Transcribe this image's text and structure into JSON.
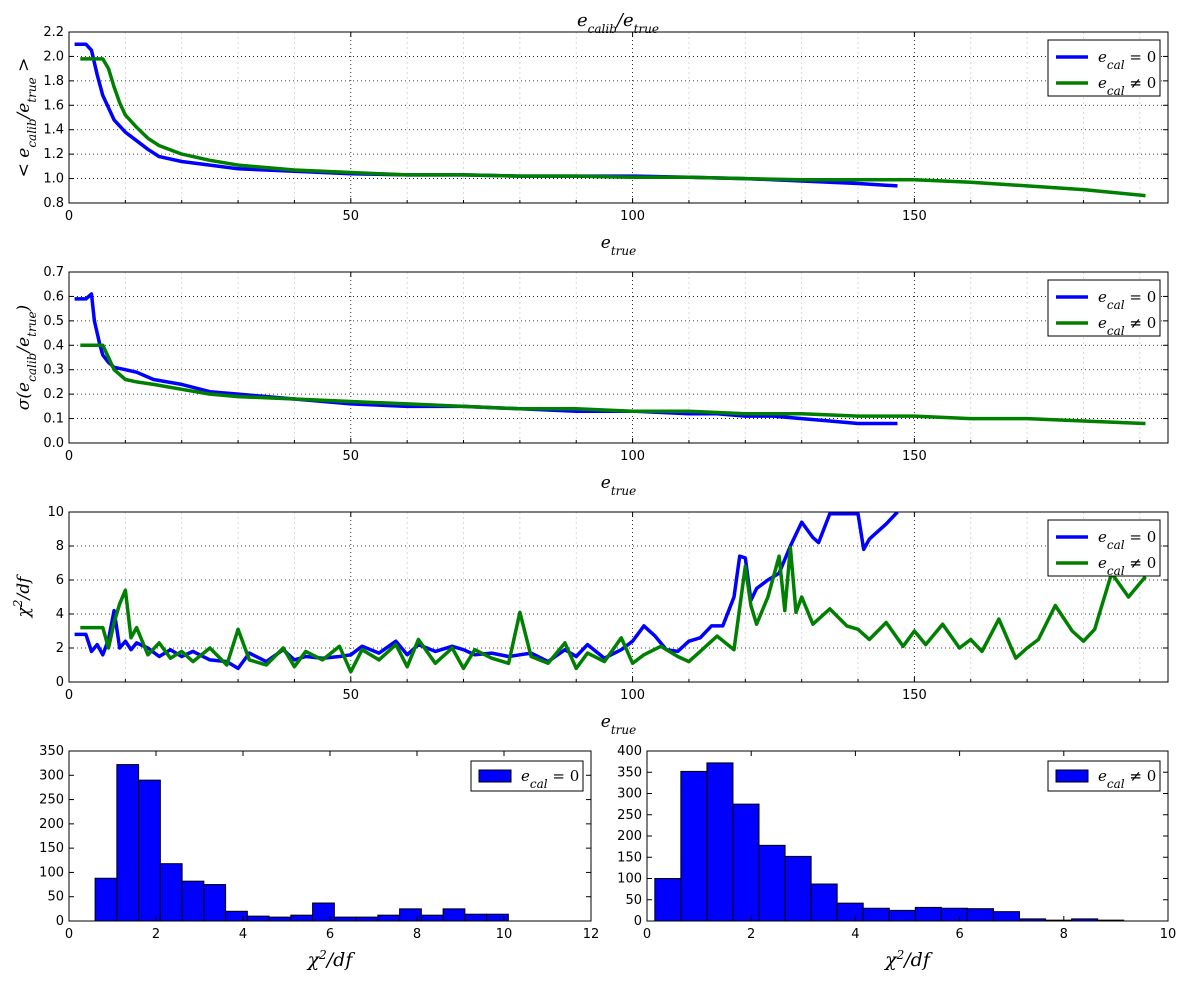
{
  "figure": {
    "title": "e_calib / e_true",
    "title_text": "e",
    "title_sub": "calib",
    "title_sep": "/e",
    "title_sub2": "true"
  },
  "chart_data": [
    {
      "id": "mean",
      "type": "line",
      "title": "e_calib/e_true",
      "xlabel": "e_true",
      "ylabel": "< e_calib/e_true >",
      "xlim": [
        0,
        195
      ],
      "ylim": [
        0.8,
        2.2
      ],
      "xticks": [
        0,
        50,
        100,
        150
      ],
      "yticks": [
        0.8,
        1.0,
        1.2,
        1.4,
        1.6,
        1.8,
        2.0,
        2.2
      ],
      "grid": true,
      "legend": "top-right",
      "series": [
        {
          "name": "e_cal = 0",
          "color": "#0000ff",
          "x": [
            1,
            3,
            4,
            5,
            6,
            7,
            8,
            10,
            12,
            14,
            16,
            20,
            25,
            30,
            40,
            50,
            60,
            70,
            80,
            90,
            100,
            110,
            120,
            130,
            140,
            147
          ],
          "y": [
            2.1,
            2.1,
            2.05,
            1.85,
            1.68,
            1.58,
            1.48,
            1.38,
            1.31,
            1.24,
            1.18,
            1.14,
            1.11,
            1.08,
            1.06,
            1.04,
            1.03,
            1.03,
            1.02,
            1.02,
            1.02,
            1.01,
            1.0,
            0.98,
            0.96,
            0.94
          ]
        },
        {
          "name": "e_cal ≠ 0",
          "color": "#008000",
          "x": [
            2,
            4,
            6,
            7,
            8,
            9,
            10,
            12,
            14,
            16,
            20,
            25,
            30,
            40,
            50,
            60,
            70,
            80,
            90,
            100,
            110,
            120,
            130,
            140,
            150,
            160,
            170,
            180,
            191
          ],
          "y": [
            1.98,
            1.98,
            1.98,
            1.9,
            1.75,
            1.62,
            1.52,
            1.42,
            1.33,
            1.27,
            1.2,
            1.15,
            1.11,
            1.07,
            1.05,
            1.03,
            1.03,
            1.02,
            1.02,
            1.01,
            1.01,
            1.0,
            0.99,
            0.99,
            0.99,
            0.97,
            0.94,
            0.91,
            0.86
          ]
        }
      ]
    },
    {
      "id": "sigma",
      "type": "line",
      "xlabel": "e_true",
      "ylabel": "σ(e_calib/e_true)",
      "xlim": [
        0,
        195
      ],
      "ylim": [
        0.0,
        0.7
      ],
      "xticks": [
        0,
        50,
        100,
        150
      ],
      "yticks": [
        0.0,
        0.1,
        0.2,
        0.3,
        0.4,
        0.5,
        0.6,
        0.7
      ],
      "grid": true,
      "legend": "top-right",
      "series": [
        {
          "name": "e_cal = 0",
          "color": "#0000ff",
          "x": [
            1,
            3,
            4,
            4.5,
            5,
            5.5,
            6,
            7,
            8,
            10,
            12,
            15,
            20,
            25,
            30,
            40,
            50,
            60,
            70,
            80,
            90,
            100,
            110,
            115,
            120,
            125,
            130,
            135,
            140,
            147
          ],
          "y": [
            0.59,
            0.59,
            0.61,
            0.5,
            0.45,
            0.4,
            0.36,
            0.33,
            0.31,
            0.3,
            0.29,
            0.26,
            0.24,
            0.21,
            0.2,
            0.18,
            0.16,
            0.15,
            0.15,
            0.14,
            0.13,
            0.13,
            0.12,
            0.12,
            0.11,
            0.11,
            0.1,
            0.09,
            0.08,
            0.08
          ]
        },
        {
          "name": "e_cal ≠ 0",
          "color": "#008000",
          "x": [
            2,
            4,
            6,
            7,
            8,
            10,
            12,
            15,
            20,
            25,
            30,
            40,
            50,
            60,
            70,
            80,
            90,
            100,
            110,
            120,
            130,
            140,
            150,
            160,
            170,
            180,
            191
          ],
          "y": [
            0.4,
            0.4,
            0.4,
            0.35,
            0.3,
            0.26,
            0.25,
            0.24,
            0.22,
            0.2,
            0.19,
            0.18,
            0.17,
            0.16,
            0.15,
            0.14,
            0.14,
            0.13,
            0.13,
            0.12,
            0.12,
            0.11,
            0.11,
            0.1,
            0.1,
            0.09,
            0.08
          ]
        }
      ]
    },
    {
      "id": "chi2",
      "type": "line",
      "xlabel": "e_true",
      "ylabel": "χ²/df",
      "xlim": [
        0,
        195
      ],
      "ylim": [
        0,
        10
      ],
      "xticks": [
        0,
        50,
        100,
        150
      ],
      "yticks": [
        0,
        2,
        4,
        6,
        8,
        10
      ],
      "grid": true,
      "legend": "top-right",
      "series": [
        {
          "name": "e_cal = 0",
          "color": "#0000ff",
          "x": [
            1,
            3,
            4,
            5,
            6,
            7,
            8,
            9,
            10,
            11,
            12,
            14,
            16,
            18,
            20,
            22,
            25,
            28,
            30,
            32,
            35,
            38,
            40,
            42,
            45,
            48,
            50,
            52,
            55,
            58,
            60,
            62,
            65,
            68,
            70,
            72,
            75,
            78,
            80,
            82,
            85,
            88,
            90,
            92,
            95,
            98,
            100,
            102,
            104,
            106,
            108,
            110,
            112,
            114,
            116,
            118,
            119,
            120,
            121,
            122,
            124,
            126,
            128,
            130,
            132,
            133,
            135,
            137,
            138,
            140,
            141,
            142,
            143,
            145,
            147
          ],
          "y": [
            2.8,
            2.8,
            1.8,
            2.2,
            1.6,
            2.5,
            4.2,
            2.0,
            2.4,
            1.9,
            2.3,
            2.0,
            1.5,
            1.9,
            1.5,
            1.8,
            1.3,
            1.2,
            0.8,
            1.7,
            1.2,
            1.9,
            1.3,
            1.5,
            1.4,
            1.5,
            1.6,
            2.1,
            1.7,
            2.4,
            1.6,
            2.2,
            1.8,
            2.1,
            1.9,
            1.6,
            1.7,
            1.5,
            1.6,
            1.7,
            1.2,
            1.9,
            1.5,
            2.2,
            1.4,
            1.9,
            2.4,
            3.3,
            2.7,
            1.9,
            1.8,
            2.4,
            2.6,
            3.3,
            3.3,
            5.0,
            7.4,
            7.3,
            4.8,
            5.5,
            6.0,
            6.4,
            8.0,
            9.4,
            8.5,
            8.2,
            9.9,
            9.9,
            9.9,
            9.9,
            7.8,
            8.4,
            8.7,
            9.3,
            10.0
          ]
        },
        {
          "name": "e_cal ≠ 0",
          "color": "#008000",
          "x": [
            2,
            4,
            6,
            7,
            8,
            9,
            10,
            11,
            12,
            14,
            16,
            18,
            20,
            22,
            25,
            28,
            30,
            32,
            35,
            38,
            40,
            42,
            45,
            48,
            50,
            52,
            55,
            58,
            60,
            62,
            65,
            68,
            70,
            72,
            75,
            78,
            80,
            82,
            85,
            88,
            90,
            92,
            95,
            98,
            100,
            102,
            105,
            108,
            110,
            112,
            115,
            118,
            120,
            121,
            122,
            124,
            126,
            127,
            128,
            129,
            130,
            132,
            135,
            138,
            140,
            142,
            145,
            148,
            150,
            152,
            155,
            158,
            160,
            162,
            165,
            168,
            170,
            172,
            175,
            178,
            180,
            182,
            185,
            188,
            191
          ],
          "y": [
            3.2,
            3.2,
            3.2,
            2.0,
            3.5,
            4.6,
            5.4,
            2.6,
            3.2,
            1.6,
            2.3,
            1.4,
            1.8,
            1.2,
            2.0,
            1.0,
            3.1,
            1.3,
            1.0,
            2.0,
            0.9,
            1.8,
            1.3,
            2.1,
            0.6,
            1.9,
            1.3,
            2.2,
            0.9,
            2.5,
            1.1,
            2.0,
            0.8,
            1.9,
            1.4,
            1.1,
            4.1,
            1.5,
            1.1,
            2.3,
            0.8,
            1.7,
            1.2,
            2.6,
            1.1,
            1.6,
            2.1,
            1.5,
            1.2,
            1.8,
            2.7,
            1.9,
            6.8,
            4.5,
            3.4,
            5.0,
            7.4,
            4.2,
            7.9,
            4.1,
            5.0,
            3.4,
            4.3,
            3.3,
            3.1,
            2.5,
            3.5,
            2.1,
            3.0,
            2.2,
            3.4,
            2.0,
            2.5,
            1.8,
            3.7,
            1.4,
            2.0,
            2.5,
            4.5,
            3.0,
            2.4,
            3.1,
            6.4,
            5.0,
            6.2
          ]
        }
      ]
    },
    {
      "id": "hist1",
      "type": "bar",
      "xlabel": "χ²/df",
      "xlim": [
        0,
        12
      ],
      "ylim": [
        0,
        350
      ],
      "xticks": [
        0,
        2,
        4,
        6,
        8,
        10,
        12
      ],
      "yticks": [
        0,
        50,
        100,
        150,
        200,
        250,
        300,
        350
      ],
      "legend": "top-right",
      "series_name": "e_cal = 0",
      "color": "#0000ff",
      "bin_start": 0.6,
      "bin_width": 0.5,
      "values": [
        88,
        322,
        290,
        118,
        82,
        75,
        20,
        10,
        8,
        12,
        37,
        8,
        8,
        12,
        25,
        12,
        25,
        14,
        14
      ]
    },
    {
      "id": "hist2",
      "type": "bar",
      "xlabel": "χ²/df",
      "xlim": [
        0,
        10
      ],
      "ylim": [
        0,
        400
      ],
      "xticks": [
        0,
        2,
        4,
        6,
        8,
        10
      ],
      "yticks": [
        0,
        50,
        100,
        150,
        200,
        250,
        300,
        350,
        400
      ],
      "legend": "top-right",
      "series_name": "e_cal ≠ 0",
      "color": "#0000ff",
      "bin_start": 0.15,
      "bin_width": 0.5,
      "values": [
        100,
        352,
        372,
        275,
        178,
        152,
        87,
        42,
        30,
        25,
        32,
        30,
        29,
        22,
        5,
        2,
        5,
        2
      ]
    }
  ]
}
